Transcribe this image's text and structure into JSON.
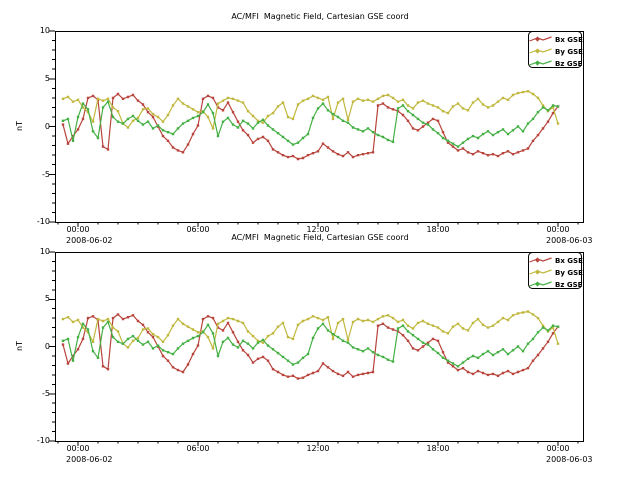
{
  "page": {
    "background": "#ffffff",
    "frame_color": "#000000",
    "text_color": "#000000"
  },
  "series_values": {
    "bx": [
      0.2,
      -1.8,
      -1.0,
      -0.3,
      0.8,
      3.0,
      3.2,
      2.8,
      -2.1,
      -2.4,
      3.0,
      3.4,
      2.9,
      3.1,
      3.3,
      2.7,
      2.3,
      1.5,
      1.0,
      0.0,
      -1.0,
      -1.5,
      -2.2,
      -2.5,
      -2.7,
      -1.9,
      -0.8,
      0.1,
      2.9,
      3.2,
      3.0,
      2.0,
      1.7,
      2.5,
      1.5,
      0.5,
      -0.4,
      -0.9,
      -1.7,
      -1.3,
      -1.1,
      -1.5,
      -2.4,
      -2.7,
      -3.0,
      -3.2,
      -3.1,
      -3.4,
      -3.3,
      -3.0,
      -2.8,
      -2.6,
      -1.8,
      -2.2,
      -2.6,
      -2.9,
      -3.1,
      -2.7,
      -3.2,
      -3.0,
      -2.9,
      -2.8,
      -2.7,
      2.2,
      2.4,
      2.0,
      1.8,
      1.6,
      1.2,
      0.6,
      -0.2,
      -0.4,
      0.0,
      0.4,
      0.8,
      0.6,
      -0.6,
      -1.7,
      -2.1,
      -2.5,
      -2.3,
      -2.7,
      -2.9,
      -2.6,
      -2.8,
      -3.0,
      -2.9,
      -3.1,
      -2.8,
      -2.6,
      -2.9,
      -2.7,
      -2.5,
      -2.3,
      -1.5,
      -0.9,
      -0.2,
      0.5,
      1.4,
      2.1
    ],
    "by": [
      2.9,
      3.1,
      2.6,
      2.8,
      2.0,
      1.5,
      0.5,
      2.9,
      2.7,
      2.9,
      2.0,
      1.6,
      0.3,
      -0.1,
      0.6,
      0.9,
      1.8,
      1.9,
      1.3,
      1.0,
      0.5,
      1.2,
      2.2,
      2.9,
      2.4,
      2.1,
      1.8,
      1.5,
      1.6,
      1.0,
      -0.2,
      2.4,
      2.7,
      3.0,
      2.9,
      2.7,
      2.5,
      1.6,
      1.1,
      0.6,
      0.4,
      1.1,
      1.4,
      2.1,
      2.5,
      1.0,
      0.8,
      2.3,
      2.7,
      2.9,
      3.2,
      3.0,
      2.8,
      3.1,
      0.8,
      2.5,
      2.9,
      0.7,
      2.6,
      2.9,
      2.7,
      2.8,
      2.6,
      2.9,
      3.2,
      3.3,
      3.0,
      2.6,
      2.8,
      2.2,
      1.9,
      2.5,
      2.7,
      2.4,
      2.2,
      2.0,
      1.6,
      1.4,
      2.1,
      2.4,
      1.9,
      1.7,
      2.5,
      2.9,
      2.3,
      2.0,
      2.2,
      2.6,
      3.0,
      2.8,
      3.3,
      3.5,
      3.6,
      3.7,
      3.4,
      3.0,
      2.2,
      1.6,
      2.0,
      0.3
    ],
    "bz": [
      0.6,
      0.8,
      -1.5,
      1.0,
      2.4,
      1.8,
      -0.5,
      -1.2,
      2.0,
      2.6,
      1.0,
      0.5,
      0.3,
      0.8,
      1.1,
      0.6,
      0.2,
      0.5,
      -0.2,
      0.1,
      -0.4,
      -0.6,
      -0.8,
      -0.2,
      0.3,
      0.6,
      0.9,
      1.1,
      1.5,
      2.3,
      1.4,
      -1.0,
      0.5,
      0.9,
      0.2,
      -0.1,
      0.6,
      0.3,
      -0.2,
      0.4,
      0.7,
      0.1,
      -0.3,
      -0.7,
      -1.1,
      -1.5,
      -1.9,
      -1.7,
      -1.2,
      -0.8,
      0.9,
      1.9,
      2.4,
      1.7,
      1.3,
      1.0,
      0.6,
      0.4,
      -0.1,
      -0.3,
      -0.5,
      -0.2,
      -0.6,
      -0.9,
      -1.1,
      -1.4,
      -1.6,
      1.9,
      2.2,
      1.6,
      1.2,
      0.8,
      0.4,
      0.2,
      -0.3,
      -0.7,
      -1.2,
      -1.5,
      -1.8,
      -2.1,
      -1.7,
      -1.3,
      -1.0,
      -1.2,
      -0.8,
      -0.5,
      -0.9,
      -0.6,
      -0.3,
      -0.8,
      -0.4,
      0.0,
      -0.5,
      0.3,
      0.8,
      1.5,
      2.0,
      1.7,
      2.2,
      2.1
    ]
  },
  "chart_data": [
    {
      "type": "line",
      "title": "AC/MFI  Magnetic Field, Cartesian GSE coord",
      "ylabel": "nT",
      "ylim": [
        -10,
        10
      ],
      "grid": false,
      "legend_position": "top-right",
      "x_start_hour": -0.75,
      "x_step_hours": 0.25,
      "yticks": [
        {
          "value": 10,
          "label": "10"
        },
        {
          "value": 5,
          "label": "5"
        },
        {
          "value": 0,
          "label": "0"
        },
        {
          "value": -5,
          "label": "-5"
        },
        {
          "value": -10,
          "label": "-10"
        }
      ],
      "xticks": [
        {
          "hour": 0,
          "label": "00:00",
          "date": "2008-06-02"
        },
        {
          "hour": 6,
          "label": "06:00"
        },
        {
          "hour": 12,
          "label": "12:00"
        },
        {
          "hour": 18,
          "label": "18:00"
        },
        {
          "hour": 24,
          "label": "00:00",
          "date": "2008-06-03"
        }
      ],
      "series": [
        {
          "name": "Bx GSE",
          "color": "#b8443c",
          "values_ref": "bx"
        },
        {
          "name": "By GSE",
          "color": "#c0b83e",
          "values_ref": "by"
        },
        {
          "name": "Bz GSE",
          "color": "#44b044",
          "values_ref": "bz"
        }
      ]
    },
    {
      "type": "line",
      "title": "AC/MFI  Magnetic Field, Cartesian GSE coord",
      "ylabel": "nT",
      "ylim": [
        -10,
        10
      ],
      "grid": false,
      "legend_position": "top-right",
      "x_start_hour": -0.75,
      "x_step_hours": 0.25,
      "yticks": [
        {
          "value": 10,
          "label": "10"
        },
        {
          "value": 5,
          "label": "5"
        },
        {
          "value": 0,
          "label": "0"
        },
        {
          "value": -5,
          "label": "-5"
        },
        {
          "value": -10,
          "label": "-10"
        }
      ],
      "xticks": [
        {
          "hour": 0,
          "label": "00:00",
          "date": "2008-06-02"
        },
        {
          "hour": 6,
          "label": "06:00"
        },
        {
          "hour": 12,
          "label": "12:00"
        },
        {
          "hour": 18,
          "label": "18:00"
        },
        {
          "hour": 24,
          "label": "00:00",
          "date": "2008-06-03"
        }
      ],
      "series": [
        {
          "name": "Bx GSE",
          "color": "#b8443c",
          "values_ref": "bx"
        },
        {
          "name": "By GSE",
          "color": "#c0b83e",
          "values_ref": "by"
        },
        {
          "name": "Bz GSE",
          "color": "#44b044",
          "values_ref": "bz"
        }
      ]
    }
  ]
}
